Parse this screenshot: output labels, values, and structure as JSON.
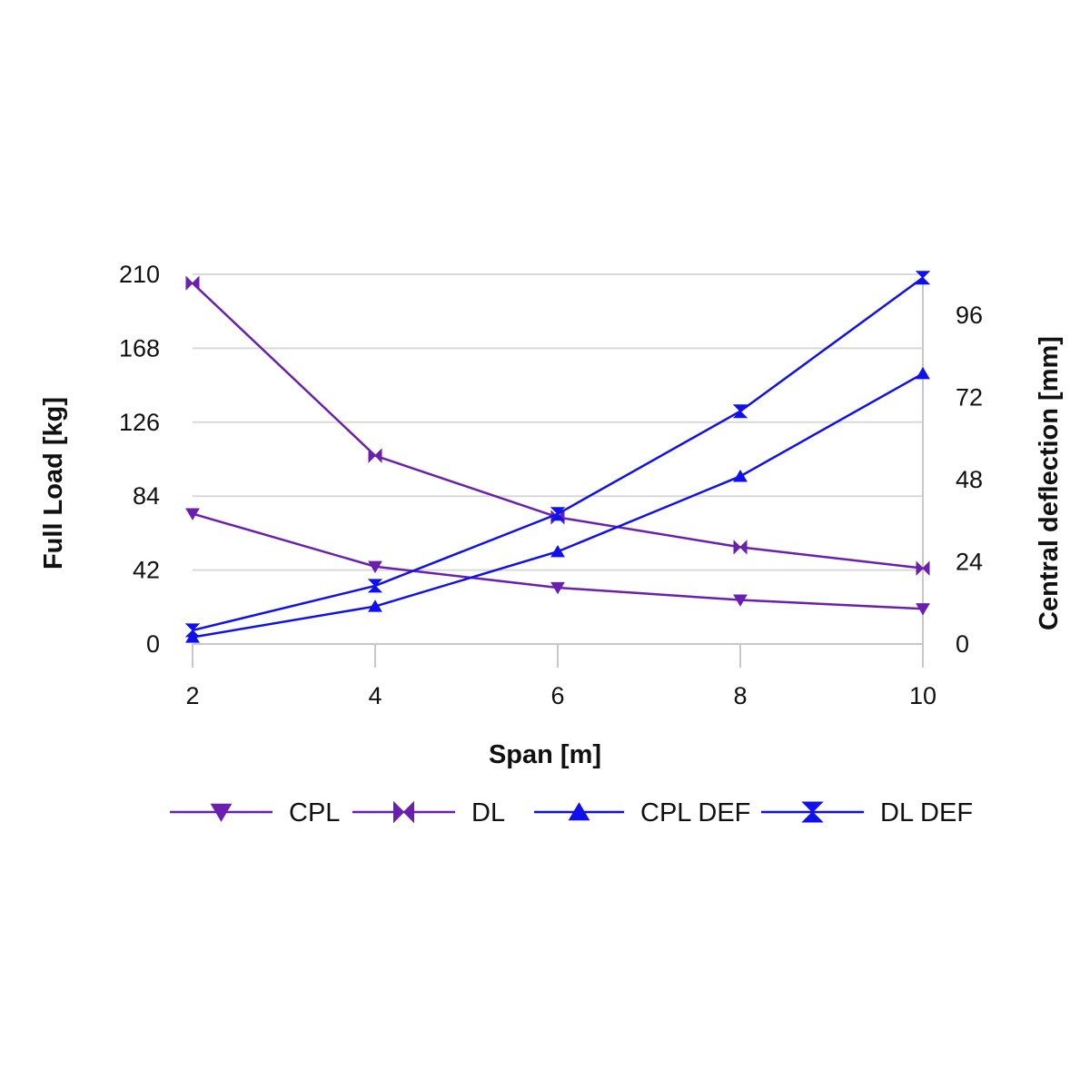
{
  "chart_data": {
    "type": "line",
    "title": "",
    "xlabel": "Span [m]",
    "ylabel": "Full Load [kg]",
    "y2label": "Central deflection [mm]",
    "x": [
      2,
      4,
      6,
      8,
      10
    ],
    "x_ticks": [
      "2",
      "4",
      "6",
      "8",
      "10"
    ],
    "ylim": [
      0,
      210
    ],
    "y_ticks": [
      "0",
      "42",
      "84",
      "126",
      "168",
      "210"
    ],
    "y2lim": [
      0,
      108
    ],
    "y2_ticks": [
      "0",
      "24",
      "48",
      "72",
      "96"
    ],
    "grid": true,
    "legend_position": "bottom",
    "series": [
      {
        "name": "CPL",
        "axis": "left",
        "marker": "triangle-down",
        "color": "#6a1fb0",
        "values": [
          74,
          44,
          32,
          25,
          20
        ]
      },
      {
        "name": "DL",
        "axis": "left",
        "marker": "bowtie",
        "color": "#6a1fb0",
        "values": [
          205,
          107,
          72,
          55,
          43
        ]
      },
      {
        "name": "CPL DEF",
        "axis": "right",
        "marker": "triangle-up",
        "color": "#1010ee",
        "values": [
          2,
          11,
          27,
          49,
          79
        ]
      },
      {
        "name": "DL DEF",
        "axis": "right",
        "marker": "hourglass",
        "color": "#1010ee",
        "values": [
          4,
          17,
          38,
          68,
          107
        ]
      }
    ]
  }
}
